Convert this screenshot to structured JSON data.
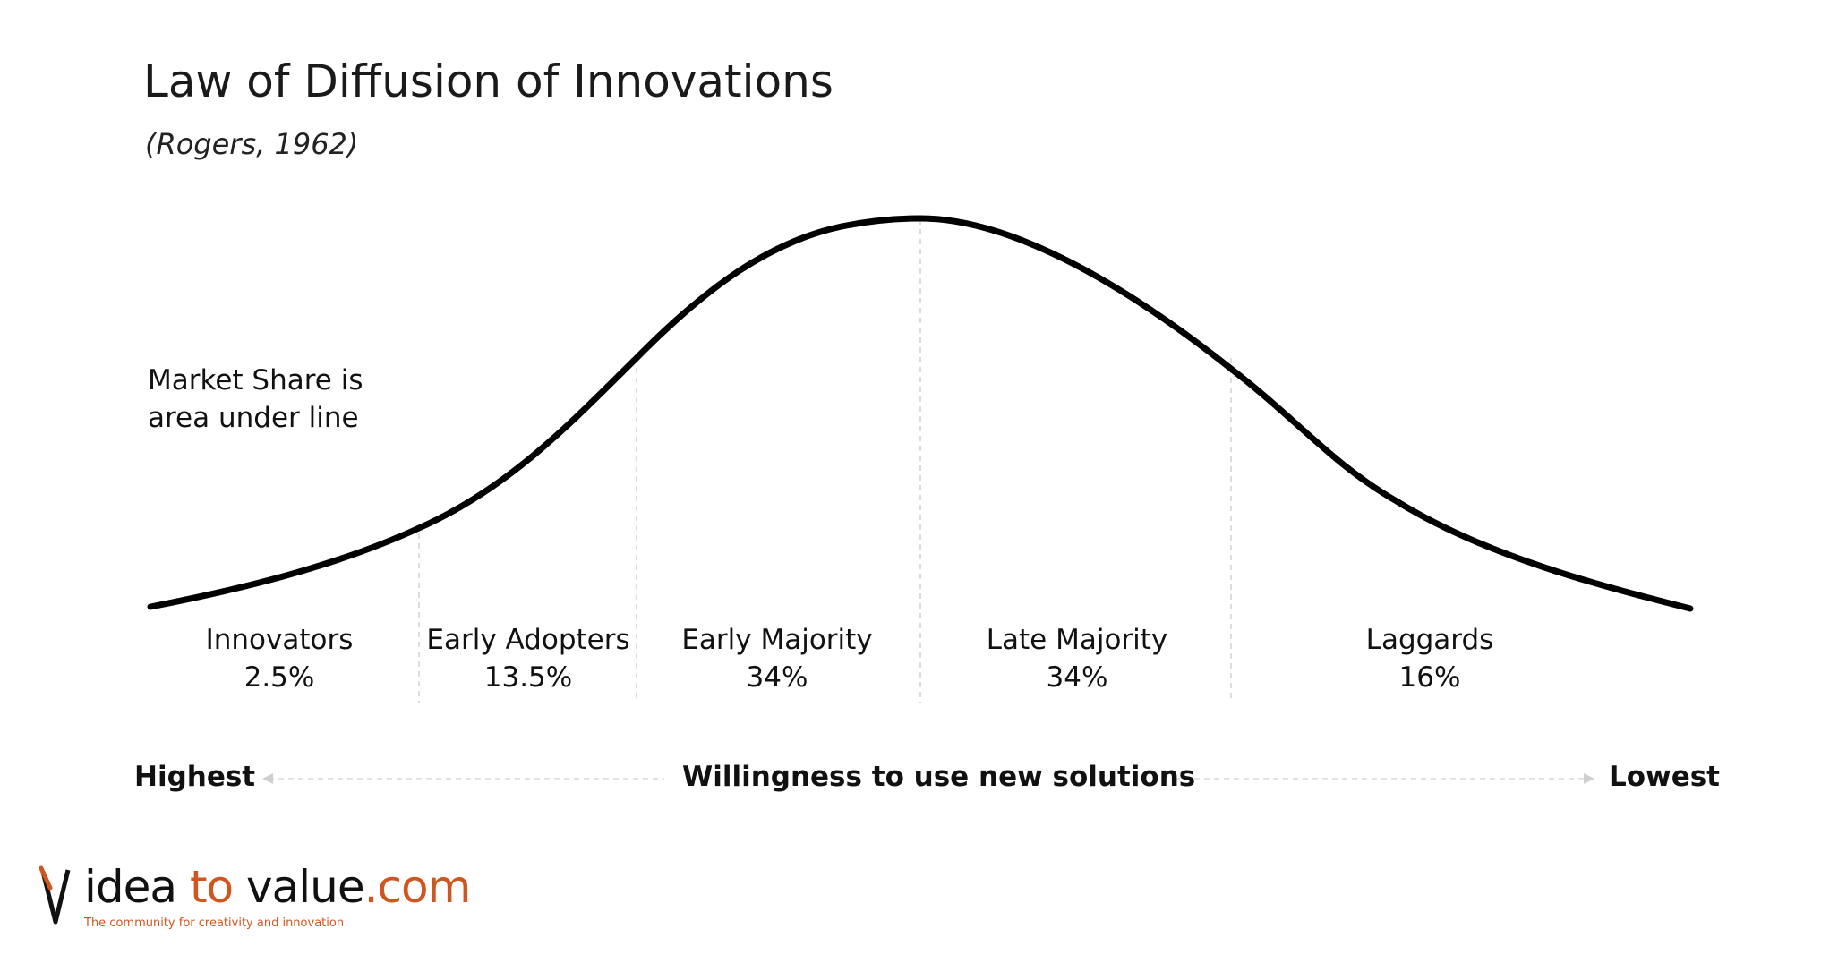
{
  "title": "Law of Diffusion of Innovations",
  "subtitle": "(Rogers, 1962)",
  "note": {
    "line1": "Market Share is",
    "line2": "area under line"
  },
  "segments": [
    {
      "name": "Innovators",
      "share": "2.5%"
    },
    {
      "name": "Early Adopters",
      "share": "13.5%"
    },
    {
      "name": "Early Majority",
      "share": "34%"
    },
    {
      "name": "Late Majority",
      "share": "34%"
    },
    {
      "name": "Laggards",
      "share": "16%"
    }
  ],
  "axis": {
    "left_label": "Highest",
    "center_label": "Willingness to use new solutions",
    "right_label": "Lowest"
  },
  "logo": {
    "text_prefix": "idea ",
    "text_accent_1": "to",
    "text_middle": " value",
    "text_accent_2": ".com",
    "tagline": "The community for creativity and innovation"
  },
  "colors": {
    "curve": "#000000",
    "divider": "#dddddd",
    "accent": "#d0561f"
  }
}
